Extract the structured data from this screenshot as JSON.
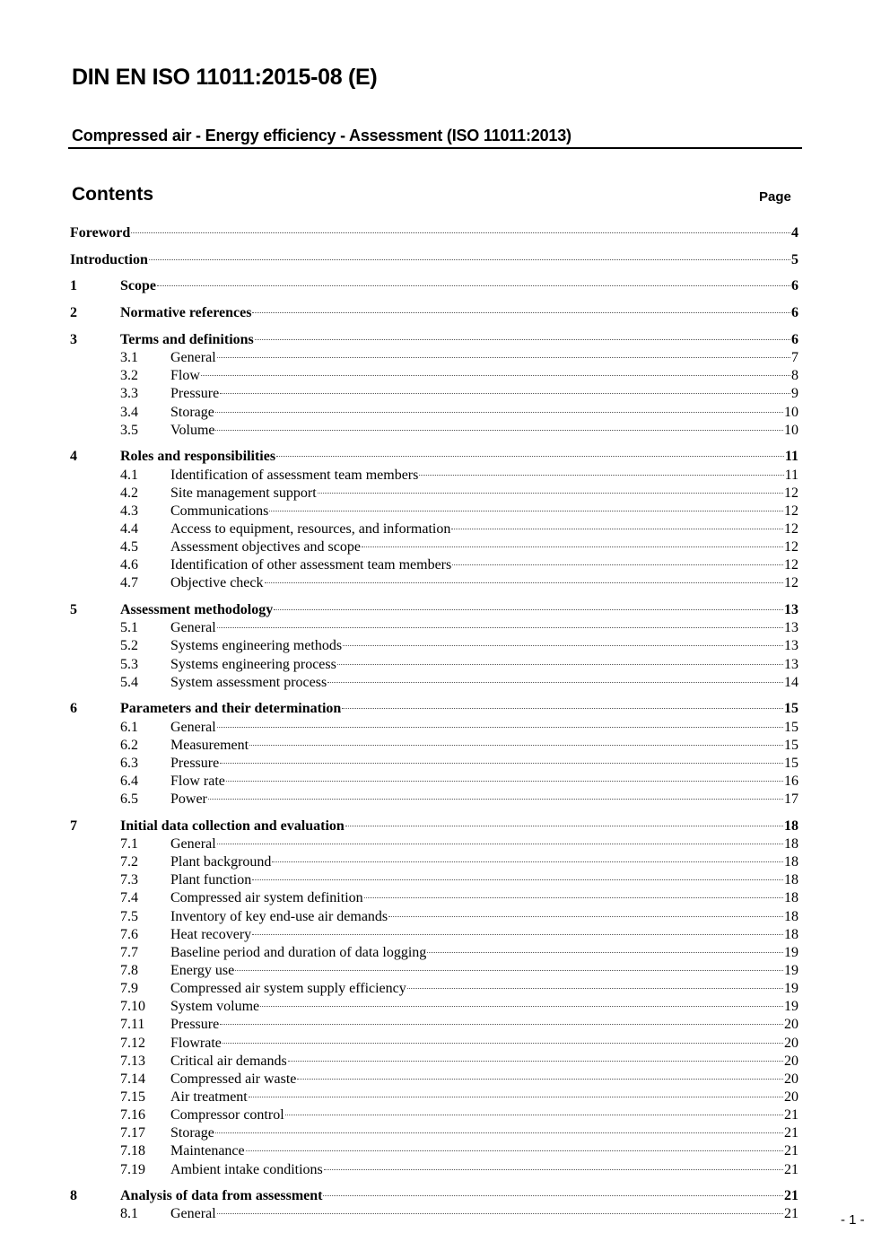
{
  "header": {
    "title": "DIN EN ISO 11011:2015-08 (E)",
    "subtitle": "Compressed air - Energy efficiency - Assessment (ISO 11011:2013)"
  },
  "contents": {
    "heading": "Contents",
    "page_label": "Page",
    "entries": [
      {
        "num": "",
        "label": "Foreword",
        "page": "4",
        "level": 1
      },
      {
        "num": "",
        "label": "Introduction",
        "page": "5",
        "level": 1
      },
      {
        "num": "1",
        "label": "Scope",
        "page": "6",
        "level": 1
      },
      {
        "num": "2",
        "label": "Normative references",
        "page": "6",
        "level": 1
      },
      {
        "num": "3",
        "label": "Terms and definitions",
        "page": "6",
        "level": 1
      },
      {
        "num": "3.1",
        "label": "General",
        "page": "7",
        "level": 2
      },
      {
        "num": "3.2",
        "label": "Flow",
        "page": "8",
        "level": 2
      },
      {
        "num": "3.3",
        "label": "Pressure",
        "page": "9",
        "level": 2
      },
      {
        "num": "3.4",
        "label": "Storage",
        "page": "10",
        "level": 2
      },
      {
        "num": "3.5",
        "label": "Volume",
        "page": "10",
        "level": 2
      },
      {
        "num": "4",
        "label": "Roles and responsibilities",
        "page": "11",
        "level": 1
      },
      {
        "num": "4.1",
        "label": "Identification of assessment team members",
        "page": "11",
        "level": 2
      },
      {
        "num": "4.2",
        "label": "Site management support",
        "page": "12",
        "level": 2
      },
      {
        "num": "4.3",
        "label": "Communications",
        "page": "12",
        "level": 2
      },
      {
        "num": "4.4",
        "label": "Access to equipment, resources, and information",
        "page": "12",
        "level": 2
      },
      {
        "num": "4.5",
        "label": "Assessment objectives and scope",
        "page": "12",
        "level": 2
      },
      {
        "num": "4.6",
        "label": "Identification of other assessment team members",
        "page": "12",
        "level": 2
      },
      {
        "num": "4.7",
        "label": "Objective check",
        "page": "12",
        "level": 2
      },
      {
        "num": "5",
        "label": "Assessment methodology",
        "page": "13",
        "level": 1
      },
      {
        "num": "5.1",
        "label": "General",
        "page": "13",
        "level": 2
      },
      {
        "num": "5.2",
        "label": "Systems engineering methods",
        "page": "13",
        "level": 2
      },
      {
        "num": "5.3",
        "label": "Systems engineering process",
        "page": "13",
        "level": 2
      },
      {
        "num": "5.4",
        "label": "System assessment process",
        "page": "14",
        "level": 2
      },
      {
        "num": "6",
        "label": "Parameters and their determination",
        "page": "15",
        "level": 1
      },
      {
        "num": "6.1",
        "label": "General",
        "page": "15",
        "level": 2
      },
      {
        "num": "6.2",
        "label": "Measurement",
        "page": "15",
        "level": 2
      },
      {
        "num": "6.3",
        "label": "Pressure",
        "page": "15",
        "level": 2
      },
      {
        "num": "6.4",
        "label": "Flow rate",
        "page": "16",
        "level": 2
      },
      {
        "num": "6.5",
        "label": "Power",
        "page": "17",
        "level": 2
      },
      {
        "num": "7",
        "label": "Initial data collection and evaluation",
        "page": "18",
        "level": 1
      },
      {
        "num": "7.1",
        "label": "General",
        "page": "18",
        "level": 2
      },
      {
        "num": "7.2",
        "label": "Plant background",
        "page": "18",
        "level": 2
      },
      {
        "num": "7.3",
        "label": "Plant function",
        "page": "18",
        "level": 2
      },
      {
        "num": "7.4",
        "label": "Compressed air system definition",
        "page": "18",
        "level": 2
      },
      {
        "num": "7.5",
        "label": "Inventory of key end-use air demands",
        "page": "18",
        "level": 2
      },
      {
        "num": "7.6",
        "label": "Heat recovery",
        "page": "18",
        "level": 2
      },
      {
        "num": "7.7",
        "label": "Baseline period and duration of data logging",
        "page": "19",
        "level": 2
      },
      {
        "num": "7.8",
        "label": "Energy use",
        "page": "19",
        "level": 2
      },
      {
        "num": "7.9",
        "label": "Compressed air system supply efficiency",
        "page": "19",
        "level": 2
      },
      {
        "num": "7.10",
        "label": "System volume",
        "page": "19",
        "level": 2
      },
      {
        "num": "7.11",
        "label": "Pressure",
        "page": "20",
        "level": 2
      },
      {
        "num": "7.12",
        "label": "Flowrate",
        "page": "20",
        "level": 2
      },
      {
        "num": "7.13",
        "label": "Critical air demands",
        "page": "20",
        "level": 2
      },
      {
        "num": "7.14",
        "label": "Compressed air waste",
        "page": "20",
        "level": 2
      },
      {
        "num": "7.15",
        "label": "Air treatment",
        "page": "20",
        "level": 2
      },
      {
        "num": "7.16",
        "label": "Compressor control",
        "page": "21",
        "level": 2
      },
      {
        "num": "7.17",
        "label": "Storage",
        "page": "21",
        "level": 2
      },
      {
        "num": "7.18",
        "label": "Maintenance",
        "page": "21",
        "level": 2
      },
      {
        "num": "7.19",
        "label": "Ambient intake conditions",
        "page": "21",
        "level": 2
      },
      {
        "num": "8",
        "label": "Analysis of data from assessment",
        "page": "21",
        "level": 1
      },
      {
        "num": "8.1",
        "label": "General",
        "page": "21",
        "level": 2
      }
    ]
  },
  "footer": {
    "page_number": "- 1 -"
  }
}
